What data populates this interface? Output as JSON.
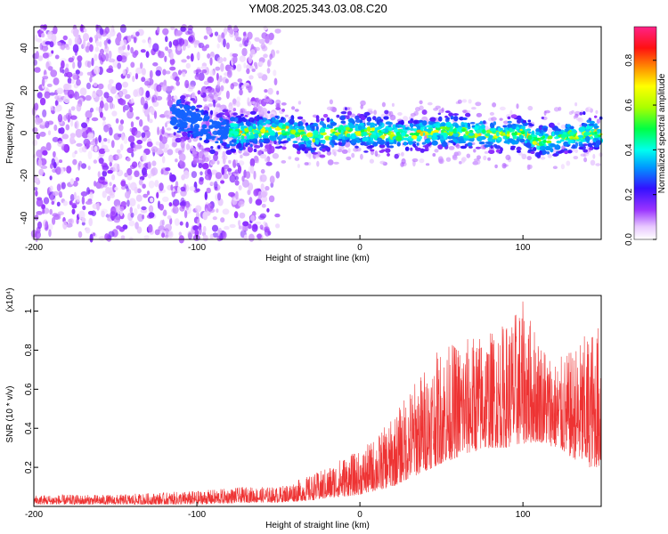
{
  "title": "YM08.2025.343.03.08.C20",
  "chart_data": [
    {
      "type": "heatmap",
      "xlabel": "Height of straight line (km)",
      "ylabel": "Frequency (Hz)",
      "xlim": [
        -200,
        148
      ],
      "ylim": [
        -50,
        50
      ],
      "xticks": [
        -200,
        -100,
        0,
        100
      ],
      "yticks": [
        -40,
        -20,
        0,
        20,
        40
      ],
      "colorbar": {
        "label": "Normalized spectral amplitude",
        "range": [
          0,
          0.95
        ],
        "ticks": [
          0,
          0.2,
          0.4,
          0.6,
          0.8
        ]
      },
      "ridge": {
        "x": [
          -110,
          -90,
          -70,
          -50,
          -30,
          -10,
          10,
          30,
          50,
          70,
          90,
          100,
          110,
          120,
          130,
          140,
          148
        ],
        "y": [
          8,
          1,
          0,
          2,
          -2,
          1,
          0,
          -1,
          1,
          0,
          -1,
          0,
          -4,
          -3,
          -1,
          0,
          0
        ]
      }
    },
    {
      "type": "line",
      "xlabel": "Height of straight line (km)",
      "ylabel": "SNR (10 * v/v)",
      "yscale_label": "(x10⁴)",
      "xlim": [
        -200,
        148
      ],
      "ylim": [
        0,
        1.08
      ],
      "xticks": [
        -200,
        -100,
        0,
        100
      ],
      "yticks": [
        0.2,
        0.4,
        0.6,
        0.8,
        1
      ],
      "color": "#ee3333",
      "envelope": {
        "x": [
          -200,
          -150,
          -100,
          -70,
          -50,
          -30,
          -20,
          -10,
          0,
          10,
          20,
          30,
          40,
          50,
          60,
          70,
          80,
          90,
          100,
          110,
          120,
          130,
          140,
          148
        ],
        "low": [
          0.01,
          0.01,
          0.01,
          0.02,
          0.02,
          0.03,
          0.04,
          0.05,
          0.06,
          0.08,
          0.1,
          0.14,
          0.18,
          0.22,
          0.25,
          0.28,
          0.3,
          0.3,
          0.32,
          0.33,
          0.3,
          0.25,
          0.2,
          0.2
        ],
        "high": [
          0.06,
          0.06,
          0.08,
          0.1,
          0.1,
          0.16,
          0.2,
          0.26,
          0.28,
          0.36,
          0.45,
          0.6,
          0.72,
          0.82,
          0.85,
          0.88,
          0.9,
          0.95,
          1.05,
          0.88,
          0.75,
          0.8,
          0.9,
          0.95
        ]
      }
    }
  ]
}
